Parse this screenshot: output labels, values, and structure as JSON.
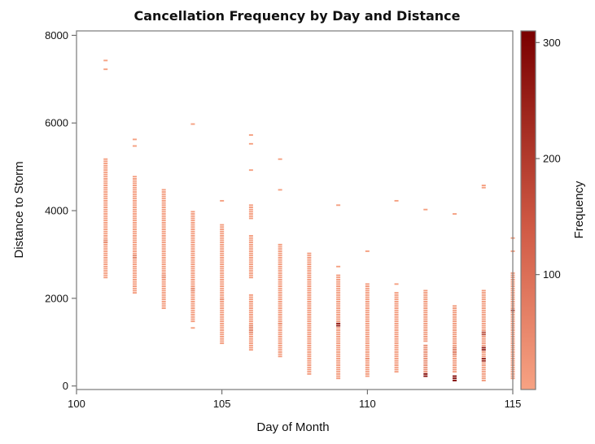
{
  "chart_data": {
    "type": "heatmap",
    "title": "Cancellation Frequency by Day and Distance",
    "xlabel": "Day of Month",
    "ylabel": "Distance to Storm",
    "xlim": [
      100,
      115
    ],
    "ylim": [
      -80,
      8100
    ],
    "x_ticks": [
      100,
      105,
      110,
      115
    ],
    "y_ticks": [
      0,
      2000,
      4000,
      6000,
      8000
    ],
    "colorbar": {
      "label": "Frequency",
      "min": 1,
      "max": 310,
      "ticks": [
        100,
        200,
        300
      ],
      "color_low": "#f7a283",
      "color_high": "#7a0000"
    },
    "bin_height": 50,
    "columns": [
      {
        "x": 101,
        "cells": [
          [
            7400,
            7450,
            5
          ],
          [
            7200,
            7250,
            5
          ],
          [
            2450,
            5200,
            8
          ],
          [
            3250,
            3350,
            40
          ]
        ]
      },
      {
        "x": 102,
        "cells": [
          [
            5600,
            5650,
            5
          ],
          [
            5450,
            5500,
            5
          ],
          [
            2100,
            4800,
            8
          ],
          [
            2900,
            3000,
            45
          ]
        ]
      },
      {
        "x": 103,
        "cells": [
          [
            1750,
            4500,
            10
          ],
          [
            2450,
            2550,
            30
          ]
        ]
      },
      {
        "x": 104,
        "cells": [
          [
            5950,
            6000,
            5
          ],
          [
            1300,
            1350,
            5
          ],
          [
            1450,
            4000,
            10
          ],
          [
            2150,
            2250,
            40
          ]
        ]
      },
      {
        "x": 105,
        "cells": [
          [
            4200,
            4250,
            5
          ],
          [
            950,
            3700,
            10
          ],
          [
            1950,
            2000,
            30
          ]
        ]
      },
      {
        "x": 106,
        "cells": [
          [
            5700,
            5750,
            5
          ],
          [
            5500,
            5550,
            5
          ],
          [
            4900,
            4950,
            5
          ],
          [
            3800,
            4150,
            8
          ],
          [
            2450,
            3450,
            10
          ],
          [
            800,
            2100,
            12
          ],
          [
            1200,
            1400,
            45
          ]
        ]
      },
      {
        "x": 107,
        "cells": [
          [
            5150,
            5200,
            5
          ],
          [
            4450,
            4500,
            5
          ],
          [
            650,
            3250,
            10
          ],
          [
            1400,
            1450,
            30
          ]
        ]
      },
      {
        "x": 108,
        "cells": [
          [
            250,
            3050,
            12
          ]
        ]
      },
      {
        "x": 109,
        "cells": [
          [
            4100,
            4150,
            5
          ],
          [
            2700,
            2750,
            5
          ],
          [
            150,
            2550,
            12
          ],
          [
            1350,
            1450,
            250
          ]
        ]
      },
      {
        "x": 110,
        "cells": [
          [
            3050,
            3100,
            5
          ],
          [
            200,
            2350,
            12
          ],
          [
            600,
            650,
            30
          ]
        ]
      },
      {
        "x": 111,
        "cells": [
          [
            4200,
            4250,
            5
          ],
          [
            2300,
            2350,
            5
          ],
          [
            300,
            2150,
            12
          ]
        ]
      },
      {
        "x": 112,
        "cells": [
          [
            4000,
            4050,
            5
          ],
          [
            1000,
            2200,
            15
          ],
          [
            300,
            950,
            35
          ],
          [
            200,
            300,
            280
          ]
        ]
      },
      {
        "x": 113,
        "cells": [
          [
            3900,
            3950,
            5
          ],
          [
            300,
            1850,
            15
          ],
          [
            700,
            900,
            60
          ],
          [
            100,
            250,
            280
          ]
        ]
      },
      {
        "x": 114,
        "cells": [
          [
            4500,
            4600,
            5
          ],
          [
            100,
            2200,
            15
          ],
          [
            550,
            650,
            230
          ],
          [
            800,
            900,
            240
          ],
          [
            1150,
            1250,
            150
          ]
        ]
      },
      {
        "x": 115,
        "cells": [
          [
            3350,
            3400,
            5
          ],
          [
            3050,
            3100,
            5
          ],
          [
            150,
            2600,
            12
          ],
          [
            1700,
            1750,
            150
          ]
        ]
      }
    ]
  }
}
